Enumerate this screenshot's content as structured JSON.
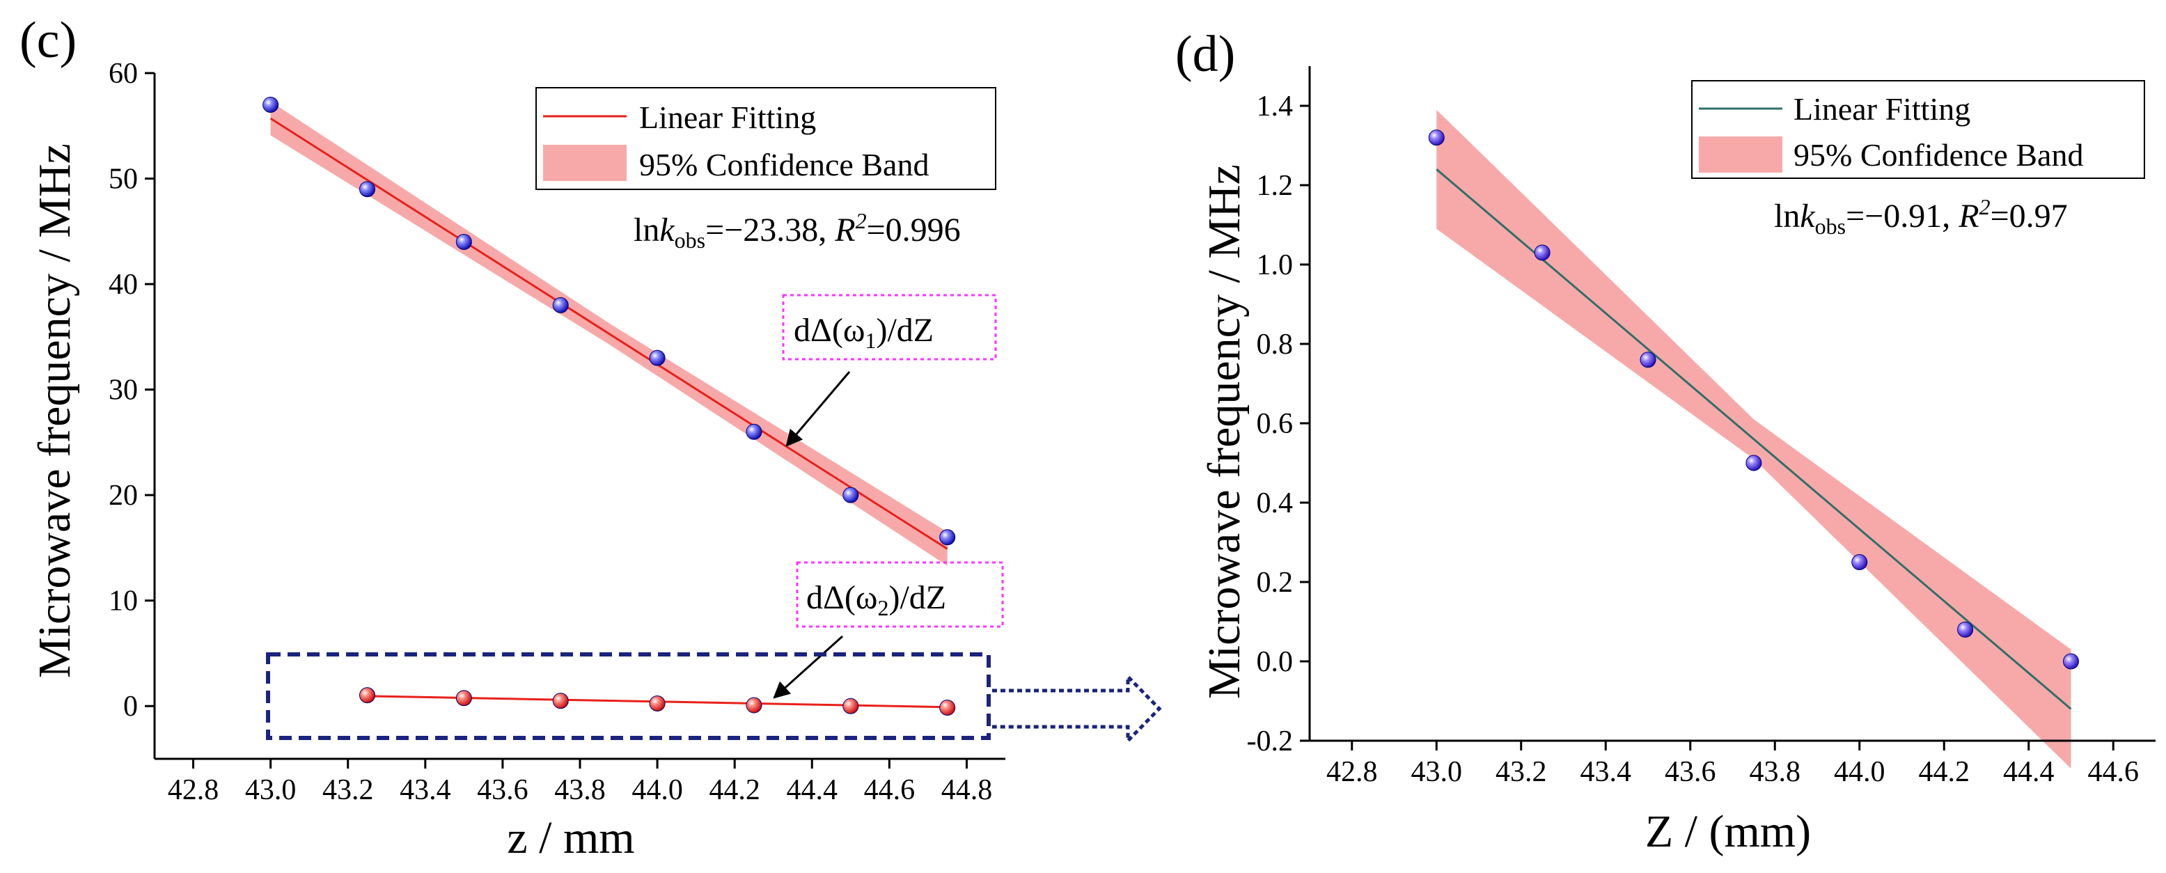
{
  "chart_data": [
    {
      "panel_label": "(c)",
      "type": "scatter",
      "xlabel": "z / mm",
      "ylabel": "Microwave frequency / MHz",
      "xlim": [
        42.7,
        44.9
      ],
      "ylim": [
        -5,
        60
      ],
      "xticks": [
        "42.8",
        "43.0",
        "43.2",
        "43.4",
        "43.6",
        "43.8",
        "44.0",
        "44.2",
        "44.4",
        "44.6",
        "44.8"
      ],
      "yticks": [
        "0",
        "10",
        "20",
        "30",
        "40",
        "50",
        "60"
      ],
      "legend": [
        "Linear Fitting",
        "95% Confidence Band"
      ],
      "legend_position": "top-right",
      "annotation": {
        "prefix": "ln",
        "k": "k",
        "sub": "obs",
        "eq": "=−23.38, ",
        "r": "R",
        "sup": "2",
        "val": "=0.996"
      },
      "series": [
        {
          "name": "dΔ(ω1)/dZ",
          "label_main": "dΔ(ω",
          "label_sub": "1",
          "label_end": ")/dZ",
          "marker_color": "#2a2ad4",
          "x": [
            43.0,
            43.25,
            43.5,
            43.75,
            44.0,
            44.25,
            44.5,
            44.75
          ],
          "y": [
            57.0,
            49.0,
            44.0,
            38.0,
            33.0,
            26.0,
            20.0,
            16.0
          ],
          "fit": {
            "x": [
              43.0,
              44.75
            ],
            "y": [
              55.7,
              14.9
            ],
            "band_halfwidth": [
              1.6,
              1.0,
              1.6
            ],
            "color": "#e8201a"
          }
        },
        {
          "name": "dΔ(ω2)/dZ",
          "label_main": "dΔ(ω",
          "label_sub": "2",
          "label_end": ")/dZ",
          "marker_color": "#e8201a",
          "x": [
            43.25,
            43.5,
            43.75,
            44.0,
            44.25,
            44.5,
            44.75
          ],
          "y": [
            1.03,
            0.76,
            0.5,
            0.25,
            0.08,
            0.0,
            -0.15
          ],
          "fit": {
            "x": [
              43.25,
              44.75
            ],
            "y": [
              0.95,
              -0.1
            ],
            "color": "#e8201a"
          }
        }
      ]
    },
    {
      "panel_label": "(d)",
      "type": "scatter",
      "xlabel": "Z / (mm)",
      "ylabel": "Microwave frequency / MHz",
      "xlim": [
        42.7,
        44.7
      ],
      "ylim": [
        -0.2,
        1.5
      ],
      "xticks": [
        "42.8",
        "43.0",
        "43.2",
        "43.4",
        "43.6",
        "43.8",
        "44.0",
        "44.2",
        "44.4",
        "44.6"
      ],
      "yticks": [
        "-0.2",
        "0.0",
        "0.2",
        "0.4",
        "0.6",
        "0.8",
        "1.0",
        "1.2",
        "1.4"
      ],
      "legend": [
        "Linear Fitting",
        "95% Confidence Band"
      ],
      "legend_position": "top-right",
      "annotation": {
        "prefix": "ln",
        "k": "k",
        "sub": "obs",
        "eq": "=−0.91, ",
        "r": "R",
        "sup": "2",
        "val": "=0.97"
      },
      "series": [
        {
          "name": "data",
          "marker_color": "#3a28c8",
          "x": [
            43.0,
            43.25,
            43.5,
            43.75,
            44.0,
            44.25,
            44.5
          ],
          "y": [
            1.32,
            1.03,
            0.76,
            0.5,
            0.25,
            0.08,
            0.0
          ],
          "fit": {
            "x": [
              43.0,
              44.5
            ],
            "y": [
              1.24,
              -0.12
            ],
            "band_halfwidth": [
              0.15,
              0.05,
              0.15
            ],
            "color": "#2f6f6a"
          }
        }
      ]
    }
  ]
}
